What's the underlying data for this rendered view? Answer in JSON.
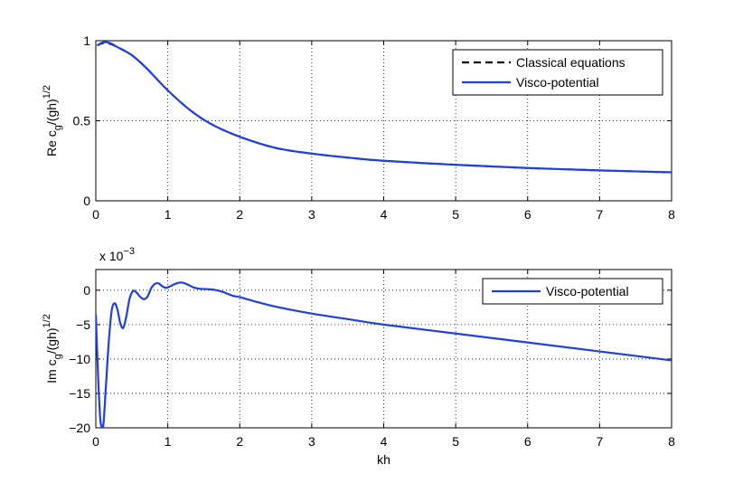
{
  "chart_data": [
    {
      "type": "line",
      "ylabel": "Re c_g/(gh)^1/2",
      "xlabel": "",
      "xlim": [
        0,
        8
      ],
      "ylim": [
        0,
        1
      ],
      "x_ticks": [
        "0",
        "1",
        "2",
        "3",
        "4",
        "5",
        "6",
        "7",
        "8"
      ],
      "y_ticks": [
        "0",
        "0.5",
        "1"
      ],
      "grid": true,
      "legend_position": "top-right",
      "series": [
        {
          "name": "Classical equations",
          "style": "dashed",
          "color": "#000000",
          "x": [
            0.02,
            0.1,
            0.2,
            0.3,
            0.5,
            0.7,
            1.0,
            1.3,
            1.6,
            2.0,
            2.5,
            3.0,
            3.5,
            4.0,
            5.0,
            6.0,
            7.0,
            8.0
          ],
          "y": [
            0.97,
            0.985,
            0.98,
            0.96,
            0.91,
            0.83,
            0.69,
            0.57,
            0.48,
            0.4,
            0.33,
            0.295,
            0.27,
            0.25,
            0.225,
            0.205,
            0.19,
            0.178
          ]
        },
        {
          "name": "Visco-potential",
          "style": "solid",
          "color": "#1f3fe0",
          "x": [
            0.02,
            0.1,
            0.2,
            0.3,
            0.5,
            0.7,
            1.0,
            1.3,
            1.6,
            2.0,
            2.5,
            3.0,
            3.5,
            4.0,
            5.0,
            6.0,
            7.0,
            8.0
          ],
          "y": [
            0.97,
            0.99,
            0.985,
            0.96,
            0.91,
            0.83,
            0.69,
            0.57,
            0.48,
            0.4,
            0.33,
            0.295,
            0.27,
            0.25,
            0.225,
            0.205,
            0.19,
            0.178
          ]
        }
      ]
    },
    {
      "type": "line",
      "ylabel": "Im c_g/(gh)^1/2",
      "xlabel": "kh",
      "exponent_label": "x 10",
      "exponent_power": "−3",
      "xlim": [
        0,
        8
      ],
      "ylim": [
        -20,
        3
      ],
      "x_ticks": [
        "0",
        "1",
        "2",
        "3",
        "4",
        "5",
        "6",
        "7",
        "8"
      ],
      "y_ticks": [
        "−20",
        "−15",
        "−10",
        "−5",
        "0"
      ],
      "grid": true,
      "legend_position": "top-right",
      "series": [
        {
          "name": "Visco-potential",
          "style": "solid",
          "color": "#1f3fe0",
          "x": [
            0.0,
            0.03,
            0.06,
            0.09,
            0.11,
            0.14,
            0.18,
            0.22,
            0.26,
            0.3,
            0.34,
            0.38,
            0.42,
            0.47,
            0.52,
            0.57,
            0.62,
            0.67,
            0.72,
            0.77,
            0.82,
            0.87,
            0.92,
            0.97,
            1.02,
            1.08,
            1.14,
            1.2,
            1.28,
            1.36,
            1.45,
            1.55,
            1.65,
            1.75,
            1.9,
            2.0,
            2.2,
            2.5,
            3.0,
            3.5,
            4.0,
            5.0,
            6.0,
            7.0,
            8.0
          ],
          "y": [
            -3.5,
            -12.0,
            -18.5,
            -20.0,
            -19.0,
            -14.0,
            -7.5,
            -3.0,
            -1.9,
            -2.8,
            -4.8,
            -5.5,
            -4.0,
            -1.2,
            -0.1,
            -0.4,
            -1.0,
            -1.3,
            -0.9,
            0.3,
            0.9,
            1.0,
            0.6,
            0.35,
            0.5,
            0.8,
            1.05,
            1.1,
            0.8,
            0.4,
            0.2,
            0.15,
            0.05,
            -0.2,
            -0.8,
            -1.0,
            -1.6,
            -2.4,
            -3.4,
            -4.2,
            -5.0,
            -6.3,
            -7.6,
            -8.9,
            -10.2
          ]
        }
      ]
    }
  ]
}
